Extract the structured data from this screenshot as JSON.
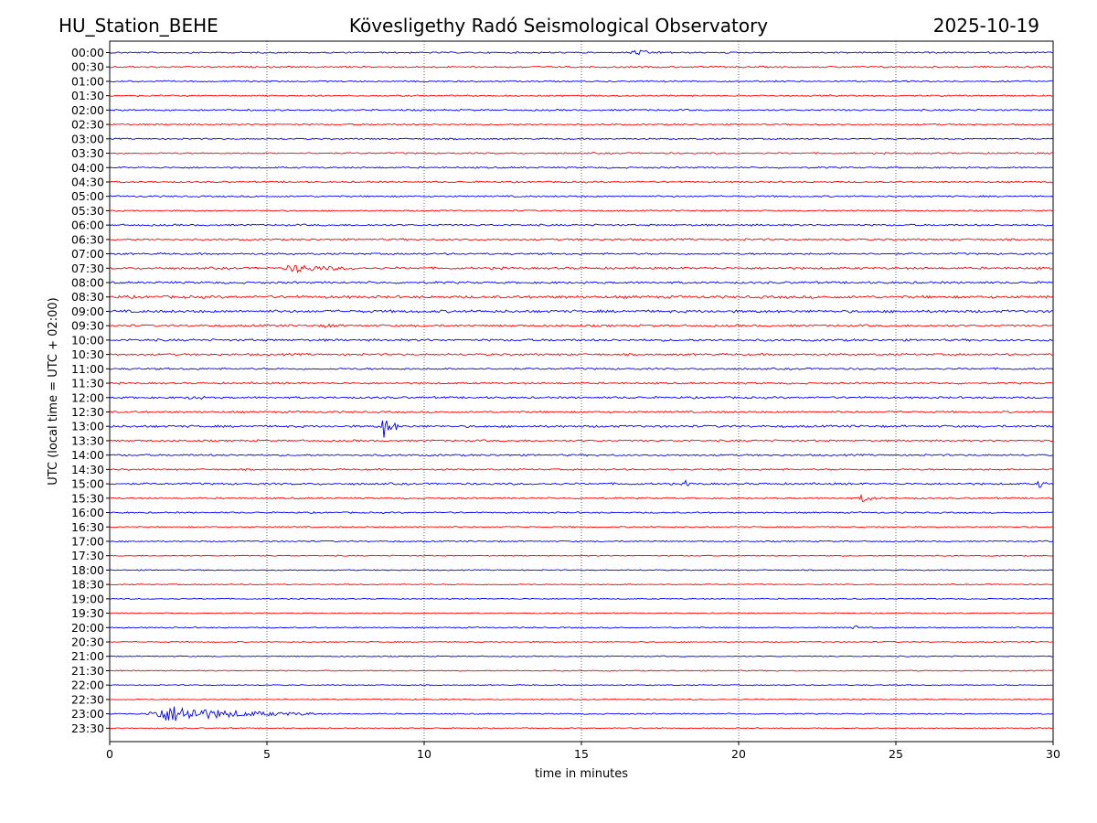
{
  "station": "HU_Station_BEHE",
  "observatory": "Kövesligethy Radó Seismological Observatory",
  "date": "2025-10-19",
  "chart_data": {
    "type": "line",
    "title": "Kövesligethy Radó Seismological Observatory",
    "xlabel": "time in minutes",
    "ylabel": "UTC (local time = UTC + 02:00)",
    "xlim": [
      0,
      30
    ],
    "x_ticks": [
      0,
      5,
      10,
      15,
      20,
      25,
      30
    ],
    "grid": "vertical-dotted",
    "colors": {
      "even_rows": "#0000ff",
      "odd_rows": "#ff0000"
    },
    "rows": [
      "00:00",
      "00:30",
      "01:00",
      "01:30",
      "02:00",
      "02:30",
      "03:00",
      "03:30",
      "04:00",
      "04:30",
      "05:00",
      "05:30",
      "06:00",
      "06:30",
      "07:00",
      "07:30",
      "08:00",
      "08:30",
      "09:00",
      "09:30",
      "10:00",
      "10:30",
      "11:00",
      "11:30",
      "12:00",
      "12:30",
      "13:00",
      "13:30",
      "14:00",
      "14:30",
      "15:00",
      "15:30",
      "16:00",
      "16:30",
      "17:00",
      "17:30",
      "18:00",
      "18:30",
      "19:00",
      "19:30",
      "20:00",
      "20:30",
      "21:00",
      "21:30",
      "22:00",
      "22:30",
      "23:00",
      "23:30"
    ],
    "noise_level": [
      0.8,
      0.9,
      0.8,
      0.8,
      0.9,
      0.8,
      0.8,
      0.8,
      0.9,
      0.9,
      0.9,
      0.8,
      1.0,
      1.0,
      1.0,
      1.2,
      1.2,
      1.5,
      1.5,
      1.2,
      1.2,
      1.1,
      1.0,
      1.0,
      1.1,
      1.1,
      1.2,
      1.0,
      1.0,
      0.9,
      1.1,
      0.9,
      0.8,
      0.7,
      0.7,
      0.6,
      0.6,
      0.6,
      0.6,
      0.6,
      0.7,
      0.6,
      0.6,
      0.6,
      0.6,
      0.6,
      0.7,
      0.6
    ],
    "events": [
      {
        "row": "00:00",
        "start_min": 16.5,
        "duration_min": 1.5,
        "amplitude": 2.5
      },
      {
        "row": "07:30",
        "start_min": 5.5,
        "duration_min": 2.5,
        "amplitude": 4
      },
      {
        "row": "09:30",
        "start_min": 6.8,
        "duration_min": 0.5,
        "amplitude": 3
      },
      {
        "row": "12:00",
        "start_min": 2.5,
        "duration_min": 0.6,
        "amplitude": 3
      },
      {
        "row": "13:00",
        "start_min": 8.6,
        "duration_min": 0.8,
        "amplitude": 12
      },
      {
        "row": "15:00",
        "start_min": 18.3,
        "duration_min": 0.2,
        "amplitude": 6
      },
      {
        "row": "15:00",
        "start_min": 29.5,
        "duration_min": 0.3,
        "amplitude": 6
      },
      {
        "row": "15:30",
        "start_min": 23.8,
        "duration_min": 0.8,
        "amplitude": 4
      },
      {
        "row": "20:00",
        "start_min": 23.6,
        "duration_min": 0.3,
        "amplitude": 4
      },
      {
        "row": "23:00",
        "start_min": 1.1,
        "duration_min": 5.5,
        "amplitude": 9
      }
    ]
  }
}
